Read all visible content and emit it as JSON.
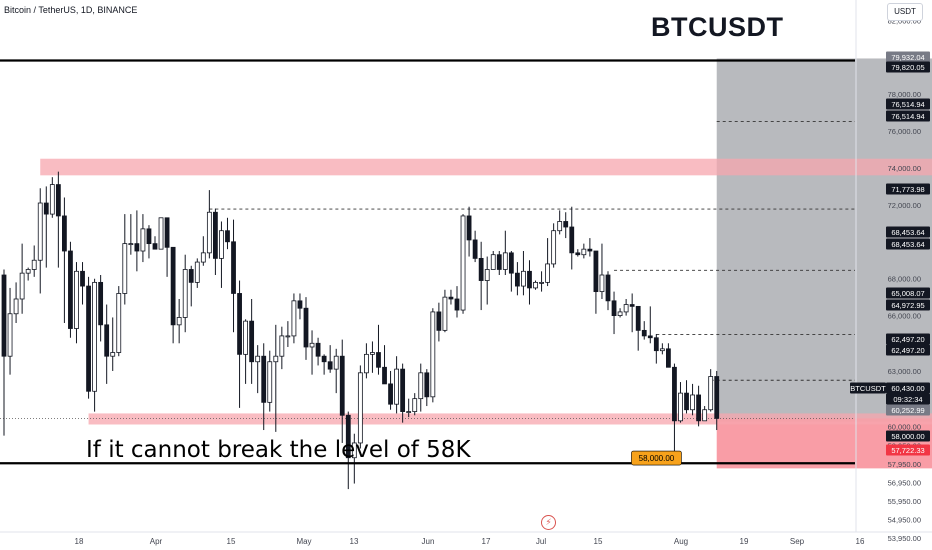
{
  "header": {
    "symbol": "Bitcoin / TetherUS, 1D, BINANCE",
    "title": "BTCUSDT",
    "currency_button": "USDT"
  },
  "annotation": {
    "text": "If it cannot break the level of 58K",
    "callout": "58,000.00"
  },
  "colors": {
    "bull": "#ffffff",
    "bear": "#131722",
    "wick": "#131722",
    "zone": "#f7a5ad",
    "projection": "#9a9ca3",
    "loss_zone": "#f88c97",
    "callout_bg": "#f7a21b",
    "level_line": "#000000",
    "current_badge": "#131722",
    "red_badge": "#f23645"
  },
  "chart_data": {
    "type": "candlestick",
    "symbol": "BTCUSDT",
    "interval": "1D",
    "exchange": "BINANCE",
    "current_price": 60430.0,
    "countdown": "09:32:34",
    "ylim": [
      53300,
      83100
    ],
    "y_ticks": [
      "82,000.00",
      "80,000.00",
      "78,000.00",
      "76,000.00",
      "74,000.00",
      "72,000.00",
      "70,000.00",
      "68,000.00",
      "66,000.00",
      "64,500.00",
      "63,000.00",
      "61,800.00",
      "60,000.00",
      "58,950.00",
      "57,950.00",
      "56,950.00",
      "55,950.00",
      "54,950.00",
      "53,950.00"
    ],
    "x_ticks": [
      "18",
      "Apr",
      "15",
      "May",
      "13",
      "Jun",
      "17",
      "Jul",
      "15",
      "Aug",
      "19",
      "Sep",
      "16"
    ],
    "price_labels": [
      {
        "text": "79,932.04",
        "style": "gray"
      },
      {
        "text": "79,820.05",
        "style": "dark"
      },
      {
        "text": "76,514.94",
        "style": "dark"
      },
      {
        "text": "76,514.94",
        "style": "dark"
      },
      {
        "text": "71,773.98",
        "style": "dark"
      },
      {
        "text": "68,453.64",
        "style": "dark"
      },
      {
        "text": "68,453.64",
        "style": "dark"
      },
      {
        "text": "65,008.07",
        "style": "dark"
      },
      {
        "text": "64,972.95",
        "style": "dark"
      },
      {
        "text": "62,497.20",
        "style": "dark"
      },
      {
        "text": "62,497.20",
        "style": "dark"
      },
      {
        "text": "BTCUSDT",
        "style": "dark"
      },
      {
        "text": "60,430.00",
        "style": "dark"
      },
      {
        "text": "09:32:34",
        "style": "dark"
      },
      {
        "text": "60,252.99",
        "style": "gray"
      },
      {
        "text": "58,000.00",
        "style": "dark"
      },
      {
        "text": "57,722.33",
        "style": "red"
      }
    ],
    "levels": [
      79820.05,
      58000.0
    ],
    "dashed_levels": [
      76514.94,
      71773.98,
      68453.64,
      64972.95,
      62497.2
    ],
    "resistance_zone": [
      73600,
      74500
    ],
    "support_zone": [
      60100,
      60700
    ],
    "projection_box": {
      "from": "2024-07-01",
      "to": "2024-09-05",
      "bottom": 60252.99,
      "top": 79932.04
    },
    "loss_box": {
      "from": "2024-07-01",
      "to": "2024-09-05",
      "bottom": 57722.33,
      "top": 60430.0
    },
    "candles": [
      [
        "2024-03-05",
        68200,
        68500,
        59500,
        63800
      ],
      [
        "2024-03-06",
        63800,
        67500,
        62800,
        66100
      ],
      [
        "2024-03-07",
        66100,
        67800,
        65600,
        66900
      ],
      [
        "2024-03-08",
        66900,
        69900,
        66100,
        68300
      ],
      [
        "2024-03-09",
        68300,
        68600,
        67900,
        68500
      ],
      [
        "2024-03-10",
        68500,
        69800,
        68100,
        69000
      ],
      [
        "2024-03-11",
        69000,
        72900,
        67200,
        72100
      ],
      [
        "2024-03-12",
        72100,
        73000,
        68600,
        71500
      ],
      [
        "2024-03-13",
        71500,
        73500,
        71300,
        73100
      ],
      [
        "2024-03-14",
        73100,
        73800,
        68600,
        71400
      ],
      [
        "2024-03-15",
        71400,
        72400,
        65600,
        69500
      ],
      [
        "2024-03-16",
        69500,
        70000,
        64800,
        65300
      ],
      [
        "2024-03-17",
        65300,
        68900,
        64500,
        68400
      ],
      [
        "2024-03-18",
        68400,
        68900,
        66600,
        67600
      ],
      [
        "2024-03-19",
        67600,
        68100,
        61500,
        61900
      ],
      [
        "2024-03-20",
        61900,
        68000,
        60800,
        67800
      ],
      [
        "2024-03-21",
        67800,
        68200,
        64600,
        65500
      ],
      [
        "2024-03-22",
        65500,
        66600,
        62300,
        63800
      ],
      [
        "2024-03-23",
        63800,
        65900,
        63000,
        64000
      ],
      [
        "2024-03-24",
        64000,
        67600,
        63800,
        67200
      ],
      [
        "2024-03-25",
        67200,
        71500,
        66600,
        69900
      ],
      [
        "2024-03-26",
        69900,
        71500,
        69300,
        69900
      ],
      [
        "2024-03-27",
        69900,
        71700,
        68400,
        69500
      ],
      [
        "2024-03-28",
        69500,
        71500,
        68900,
        70700
      ],
      [
        "2024-03-29",
        70700,
        70900,
        69100,
        69900
      ],
      [
        "2024-03-30",
        69900,
        70300,
        69600,
        69600
      ],
      [
        "2024-03-31",
        69600,
        71300,
        69600,
        71300
      ],
      [
        "2024-04-01",
        71300,
        71300,
        68100,
        69700
      ],
      [
        "2024-04-02",
        69700,
        69700,
        64500,
        65500
      ],
      [
        "2024-04-03",
        65500,
        66900,
        64500,
        65900
      ],
      [
        "2024-04-04",
        65900,
        69300,
        65100,
        68500
      ],
      [
        "2024-04-05",
        68500,
        68700,
        66500,
        67800
      ],
      [
        "2024-04-06",
        67800,
        69100,
        67500,
        68900
      ],
      [
        "2024-04-07",
        68900,
        70300,
        68700,
        69400
      ],
      [
        "2024-04-08",
        69400,
        72800,
        69100,
        71600
      ],
      [
        "2024-04-09",
        71600,
        71800,
        68200,
        69100
      ],
      [
        "2024-04-10",
        69100,
        71100,
        67500,
        70600
      ],
      [
        "2024-04-11",
        70600,
        71300,
        69600,
        70000
      ],
      [
        "2024-04-12",
        70000,
        71200,
        65100,
        67200
      ],
      [
        "2024-04-13",
        67200,
        67900,
        61000,
        63900
      ],
      [
        "2024-04-14",
        63900,
        65800,
        62300,
        65700
      ],
      [
        "2024-04-15",
        65700,
        66900,
        62300,
        63500
      ],
      [
        "2024-04-16",
        63500,
        64400,
        61800,
        63800
      ],
      [
        "2024-04-17",
        63800,
        64500,
        59800,
        61300
      ],
      [
        "2024-04-18",
        61300,
        64100,
        60800,
        63500
      ],
      [
        "2024-04-19",
        63500,
        65500,
        59700,
        63800
      ],
      [
        "2024-04-20",
        63800,
        65400,
        63100,
        64900
      ],
      [
        "2024-04-21",
        64900,
        65700,
        64300,
        64900
      ],
      [
        "2024-04-22",
        64900,
        67200,
        64500,
        66800
      ],
      [
        "2024-04-23",
        66800,
        67200,
        65800,
        66400
      ],
      [
        "2024-04-24",
        66400,
        67000,
        63600,
        64300
      ],
      [
        "2024-04-25",
        64300,
        65200,
        62800,
        64500
      ],
      [
        "2024-04-26",
        64500,
        64800,
        63300,
        63800
      ],
      [
        "2024-04-27",
        63800,
        63900,
        62800,
        63500
      ],
      [
        "2024-04-28",
        63500,
        64400,
        62900,
        63100
      ],
      [
        "2024-04-29",
        63100,
        64200,
        61800,
        63800
      ],
      [
        "2024-04-30",
        63800,
        64700,
        59100,
        60600
      ],
      [
        "2024-05-01",
        60600,
        60800,
        56600,
        58300
      ],
      [
        "2024-05-02",
        58300,
        59600,
        56900,
        59100
      ],
      [
        "2024-05-03",
        59100,
        63300,
        58800,
        62900
      ],
      [
        "2024-05-04",
        62900,
        64500,
        62600,
        63900
      ],
      [
        "2024-05-05",
        63900,
        64600,
        62900,
        64000
      ],
      [
        "2024-05-06",
        64000,
        65500,
        62800,
        63200
      ],
      [
        "2024-05-07",
        63200,
        64400,
        62300,
        62300
      ],
      [
        "2024-05-08",
        62300,
        63000,
        60900,
        61200
      ],
      [
        "2024-05-09",
        61200,
        63800,
        60700,
        63100
      ],
      [
        "2024-05-10",
        63100,
        63400,
        60200,
        60800
      ],
      [
        "2024-05-11",
        60800,
        61500,
        60500,
        60800
      ],
      [
        "2024-05-12",
        60800,
        61800,
        60600,
        61500
      ],
      [
        "2024-05-13",
        61500,
        63400,
        60800,
        62900
      ],
      [
        "2024-05-14",
        62900,
        63100,
        61100,
        61600
      ],
      [
        "2024-05-15",
        61600,
        66400,
        61300,
        66200
      ],
      [
        "2024-05-16",
        66200,
        66700,
        64600,
        65200
      ],
      [
        "2024-05-17",
        65200,
        67400,
        65100,
        67000
      ],
      [
        "2024-05-18",
        67000,
        67400,
        66600,
        66900
      ],
      [
        "2024-05-19",
        66900,
        67600,
        65900,
        66300
      ],
      [
        "2024-05-20",
        66300,
        71500,
        66100,
        71400
      ],
      [
        "2024-05-21",
        71400,
        71900,
        69200,
        70100
      ],
      [
        "2024-05-22",
        70100,
        70600,
        68900,
        69100
      ],
      [
        "2024-05-23",
        69100,
        70000,
        66300,
        67900
      ],
      [
        "2024-05-24",
        67900,
        69200,
        66600,
        68500
      ],
      [
        "2024-05-25",
        68500,
        69500,
        68500,
        69300
      ],
      [
        "2024-05-26",
        69300,
        69500,
        68200,
        68500
      ],
      [
        "2024-05-27",
        68500,
        70600,
        68200,
        69400
      ],
      [
        "2024-05-28",
        69400,
        69500,
        67300,
        68300
      ],
      [
        "2024-05-29",
        68300,
        68900,
        67100,
        67600
      ],
      [
        "2024-05-30",
        67600,
        69500,
        67100,
        68400
      ],
      [
        "2024-05-31",
        68400,
        69000,
        66600,
        67500
      ],
      [
        "2024-06-01",
        67500,
        67900,
        67400,
        67800
      ],
      [
        "2024-06-02",
        67800,
        68400,
        67300,
        67800
      ],
      [
        "2024-06-03",
        67800,
        70200,
        67600,
        68800
      ],
      [
        "2024-06-04",
        68800,
        71000,
        68600,
        70600
      ],
      [
        "2024-06-05",
        70600,
        71700,
        70400,
        71100
      ],
      [
        "2024-06-06",
        71100,
        71600,
        70200,
        70800
      ],
      [
        "2024-06-07",
        70800,
        71900,
        68500,
        69400
      ],
      [
        "2024-06-08",
        69400,
        69600,
        69200,
        69300
      ],
      [
        "2024-06-09",
        69300,
        69900,
        69100,
        69600
      ],
      [
        "2024-06-10",
        69600,
        70200,
        69200,
        69500
      ],
      [
        "2024-06-11",
        69500,
        69500,
        66100,
        67300
      ],
      [
        "2024-06-12",
        67300,
        69900,
        66900,
        68200
      ],
      [
        "2024-06-13",
        68200,
        68400,
        66300,
        66800
      ],
      [
        "2024-06-14",
        66800,
        67300,
        65000,
        66000
      ],
      [
        "2024-06-15",
        66000,
        66400,
        65900,
        66200
      ],
      [
        "2024-06-16",
        66200,
        66900,
        66000,
        66600
      ],
      [
        "2024-06-17",
        66600,
        67200,
        65100,
        66500
      ],
      [
        "2024-06-18",
        66500,
        66500,
        64100,
        65200
      ],
      [
        "2024-06-19",
        65200,
        65700,
        64700,
        64900
      ],
      [
        "2024-06-20",
        64900,
        66500,
        64500,
        64800
      ],
      [
        "2024-06-21",
        64800,
        65000,
        63400,
        64100
      ],
      [
        "2024-06-22",
        64100,
        64500,
        63900,
        64200
      ],
      [
        "2024-06-23",
        64200,
        64500,
        63300,
        63200
      ],
      [
        "2024-06-24",
        63200,
        63400,
        58400,
        60300
      ],
      [
        "2024-06-25",
        60300,
        62400,
        60200,
        61800
      ],
      [
        "2024-06-26",
        61800,
        62500,
        60700,
        60900
      ],
      [
        "2024-06-27",
        60900,
        62300,
        60600,
        61700
      ],
      [
        "2024-06-28",
        61700,
        62200,
        60000,
        60300
      ],
      [
        "2024-06-29",
        60300,
        61100,
        60300,
        60900
      ],
      [
        "2024-06-30",
        60900,
        63100,
        60800,
        62700
      ],
      [
        "2024-07-01",
        62700,
        63000,
        59800,
        60430
      ]
    ]
  }
}
